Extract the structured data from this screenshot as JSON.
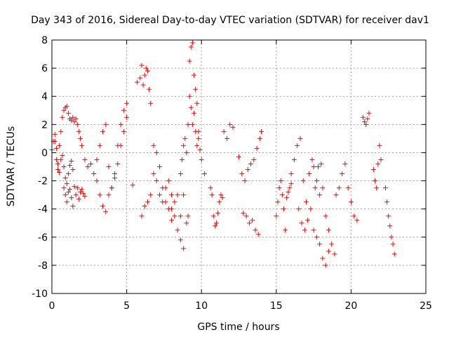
{
  "chart_data": {
    "type": "scatter",
    "title": "Day 343 of 2016, Sidereal Day-to-day VTEC variation (SDTVAR) for receiver dav1",
    "xlabel": "GPS time / hours",
    "ylabel": "SDTVAR / TECUs",
    "xlim": [
      0,
      25
    ],
    "ylim": [
      -10,
      8
    ],
    "xticks": [
      0,
      5,
      10,
      15,
      20,
      25
    ],
    "xtick_labels": [
      "0",
      "5",
      "10",
      "15",
      "20",
      "25"
    ],
    "yticks": [
      -10,
      -8,
      -6,
      -4,
      -2,
      0,
      2,
      4,
      6,
      8
    ],
    "ytick_labels": [
      "-10",
      "-8",
      "-6",
      "-4",
      "-2",
      "0",
      "2",
      "4",
      "6",
      "8"
    ],
    "grid": true,
    "marker": "+",
    "color": "#ff0000",
    "series": [
      {
        "name": "SDTVAR",
        "x": [
          0.0,
          0.1,
          0.2,
          0.3,
          0.4,
          0.5,
          0.6,
          0.7,
          0.8,
          0.9,
          1.0,
          1.1,
          1.2,
          1.3,
          1.4,
          1.5,
          1.6,
          1.7,
          1.8,
          1.9,
          2.0,
          0.8,
          0.9,
          1.0,
          1.1,
          1.2,
          1.3,
          1.4,
          1.5,
          1.6,
          1.7,
          1.8,
          1.9,
          2.0,
          2.1,
          2.2,
          0.2,
          0.3,
          0.4,
          0.5,
          0.6,
          0.7,
          0.8,
          0.9,
          1.0,
          1.1,
          1.2,
          1.3,
          1.4,
          2.2,
          2.4,
          2.6,
          2.8,
          3.0,
          3.2,
          3.4,
          3.6,
          3.8,
          4.0,
          4.2,
          4.4,
          4.6,
          4.8,
          5.0,
          3.0,
          3.2,
          3.4,
          3.6,
          3.8,
          4.0,
          4.2,
          4.4,
          4.6,
          4.8,
          5.0,
          5.4,
          5.7,
          5.9,
          6.0,
          6.1,
          6.2,
          6.3,
          6.4,
          6.5,
          6.6,
          6.0,
          6.2,
          6.4,
          6.6,
          6.8,
          7.0,
          7.2,
          7.4,
          7.6,
          7.8,
          8.0,
          6.8,
          7.0,
          7.2,
          7.4,
          7.6,
          7.8,
          8.0,
          8.2,
          8.4,
          8.6,
          8.8,
          8.0,
          8.2,
          8.4,
          8.6,
          8.8,
          9.0,
          9.1,
          9.2,
          9.3,
          9.4,
          9.5,
          9.6,
          9.7,
          9.8,
          9.9,
          10.0,
          10.2,
          8.6,
          8.7,
          8.8,
          8.9,
          9.0,
          9.1,
          9.2,
          9.3,
          9.4,
          9.5,
          9.6,
          9.7,
          9.8,
          10.6,
          10.7,
          10.8,
          10.9,
          11.0,
          11.1,
          11.2,
          11.3,
          11.4,
          11.5,
          11.7,
          11.9,
          12.1,
          12.5,
          12.7,
          12.9,
          13.1,
          13.3,
          13.5,
          13.7,
          13.9,
          14.0,
          12.8,
          13.0,
          13.2,
          13.4,
          13.6,
          13.8,
          15.0,
          15.1,
          15.2,
          15.3,
          15.4,
          15.5,
          15.6,
          15.7,
          15.8,
          15.9,
          16.0,
          16.0,
          16.2,
          16.4,
          16.6,
          16.8,
          17.0,
          17.2,
          17.4,
          17.6,
          17.8,
          18.0,
          16.5,
          16.7,
          16.9,
          17.1,
          17.3,
          17.5,
          17.7,
          17.9,
          18.1,
          18.3,
          18.5,
          17.5,
          17.7,
          17.9,
          18.1,
          18.3,
          18.5,
          18.7,
          18.9,
          19.0,
          19.2,
          19.4,
          19.6,
          19.8,
          20.0,
          20.2,
          20.4,
          20.8,
          20.9,
          21.0,
          21.1,
          21.2,
          21.5,
          21.6,
          21.7,
          21.8,
          21.9,
          22.0,
          22.3,
          22.4,
          22.5,
          22.6,
          22.7,
          22.8,
          22.9
        ],
        "y": [
          0.2,
          0.8,
          1.3,
          -0.5,
          -1.2,
          0.5,
          1.5,
          2.5,
          3.0,
          3.2,
          3.3,
          2.8,
          2.4,
          2.3,
          2.5,
          2.2,
          2.4,
          2.0,
          1.5,
          1.0,
          0.5,
          -2.5,
          -3.0,
          -3.5,
          -2.8,
          -2.6,
          -3.2,
          -3.8,
          -2.4,
          -3.0,
          -2.5,
          -3.3,
          -2.8,
          -2.6,
          -2.9,
          -3.1,
          0.8,
          0.3,
          -0.8,
          -1.4,
          -0.5,
          -0.2,
          -1.0,
          -1.8,
          -2.2,
          -1.5,
          -0.9,
          -0.6,
          -1.2,
          -0.5,
          -1.0,
          -0.8,
          -1.5,
          -0.5,
          0.5,
          1.5,
          2.0,
          -1.0,
          -2.5,
          -1.8,
          -0.8,
          0.5,
          1.5,
          2.5,
          -2.0,
          -3.0,
          -3.8,
          -4.2,
          -3.0,
          -2.5,
          -1.5,
          0.5,
          2.0,
          3.0,
          3.5,
          -2.3,
          5.0,
          5.3,
          6.2,
          4.8,
          5.5,
          6.0,
          5.8,
          4.5,
          3.5,
          -4.5,
          -3.8,
          -3.5,
          -3.0,
          -1.5,
          -2.0,
          -3.0,
          -3.5,
          -2.5,
          -4.0,
          -4.8,
          0.5,
          0.0,
          -1.0,
          -2.5,
          -3.5,
          -2.0,
          -4.0,
          -3.5,
          -3.0,
          -4.5,
          -3.0,
          -3.0,
          -4.5,
          -5.5,
          -6.2,
          -6.8,
          -5.0,
          -4.5,
          4.0,
          3.2,
          2.0,
          2.8,
          1.5,
          0.5,
          1.0,
          0.2,
          -0.5,
          -1.5,
          -1.5,
          -0.5,
          0.5,
          1.0,
          0.0,
          2.0,
          6.5,
          7.5,
          7.8,
          5.5,
          4.5,
          3.5,
          1.5,
          -2.5,
          -3.0,
          -4.5,
          -5.2,
          -5.0,
          -4.3,
          -3.5,
          -3.0,
          -3.2,
          1.5,
          1.0,
          2.0,
          1.8,
          -0.3,
          -1.5,
          -2.0,
          -1.2,
          -0.8,
          -0.5,
          0.3,
          1.0,
          1.5,
          -4.3,
          -4.5,
          -5.0,
          -4.8,
          -5.5,
          -5.8,
          -4.5,
          -3.5,
          -2.5,
          -2.0,
          -3.0,
          -4.0,
          -5.5,
          -3.2,
          -2.8,
          -2.5,
          -2.2,
          -1.5,
          -0.5,
          0.5,
          1.0,
          -2.0,
          -3.5,
          -1.5,
          -0.5,
          -2.5,
          -1.0,
          -0.8,
          -4.0,
          -5.0,
          -5.5,
          -4.8,
          -4.0,
          -5.5,
          -6.0,
          -6.5,
          -7.5,
          -8.0,
          -7.0,
          -1.0,
          -2.0,
          -3.0,
          -2.5,
          -4.5,
          -5.5,
          -6.5,
          -7.2,
          -3.0,
          -2.5,
          -1.5,
          -0.8,
          -2.5,
          -3.5,
          -4.5,
          -4.8,
          2.5,
          2.2,
          2.0,
          2.4,
          2.8,
          -1.2,
          -2.0,
          -2.5,
          -0.8,
          0.5,
          -0.5,
          -2.5,
          -3.5,
          -4.5,
          -5.2,
          -6.0,
          -6.5,
          -7.2
        ]
      }
    ]
  }
}
